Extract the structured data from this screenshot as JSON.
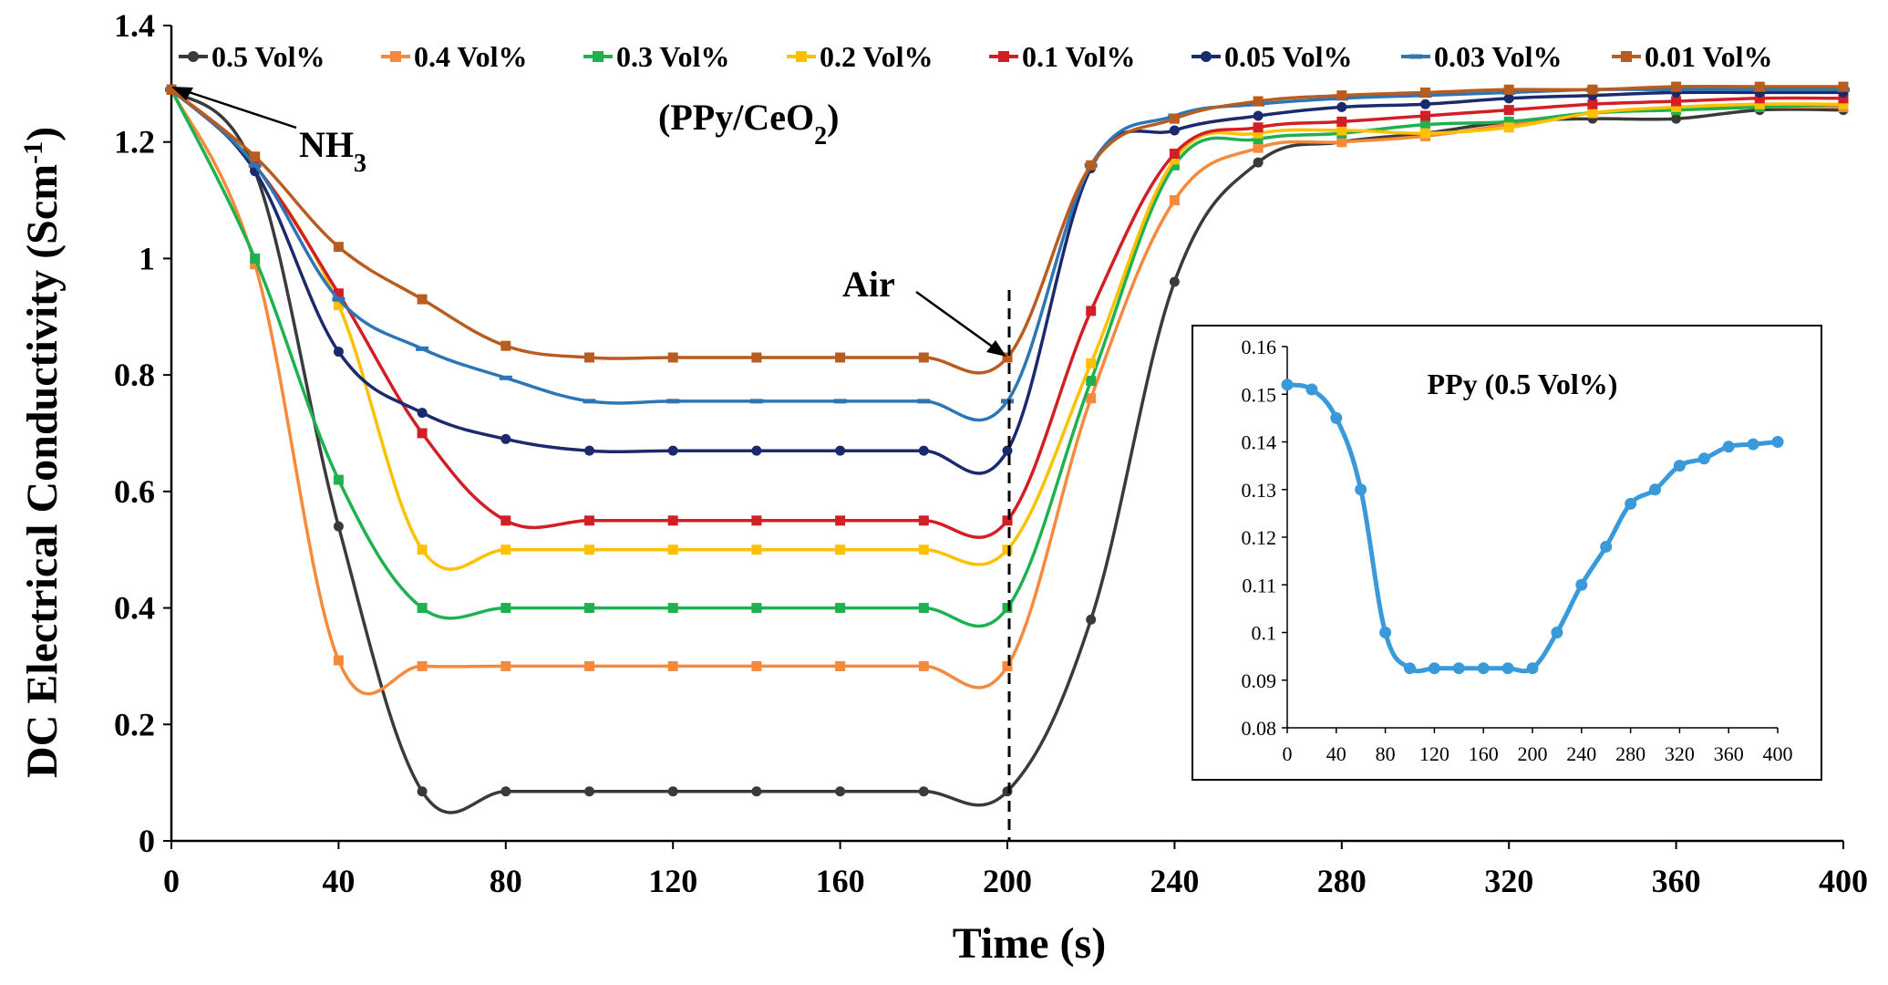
{
  "chart_data": {
    "type": "line",
    "title": "",
    "xlabel": "Time (s)",
    "ylabel": "DC Electrical Conductivity (Scm",
    "ylabel_sup": "-1",
    "ylabel_end": ")",
    "xlim": [
      0,
      400
    ],
    "ylim": [
      0,
      1.4
    ],
    "xticks": [
      0,
      40,
      80,
      120,
      160,
      200,
      240,
      280,
      320,
      360,
      400
    ],
    "yticks": [
      0,
      0.2,
      0.4,
      0.6,
      0.8,
      1,
      1.2,
      1.4
    ],
    "ytick_labels": [
      "0",
      "0.2",
      "0.4",
      "0.6",
      "0.8",
      "1",
      "1.2",
      "1.4"
    ],
    "x": [
      0,
      20,
      40,
      60,
      80,
      100,
      120,
      140,
      160,
      180,
      200,
      220,
      240,
      260,
      280,
      300,
      320,
      340,
      360,
      380,
      400
    ],
    "series": [
      {
        "name": "0.5 Vol%",
        "color": "#3a3a3a",
        "values": [
          1.29,
          1.15,
          0.54,
          0.085,
          0.085,
          0.085,
          0.085,
          0.085,
          0.085,
          0.085,
          0.085,
          0.38,
          0.96,
          1.165,
          1.2,
          1.215,
          1.235,
          1.24,
          1.24,
          1.255,
          1.255
        ]
      },
      {
        "name": "0.4 Vol%",
        "color": "#f58a3d",
        "values": [
          1.29,
          0.99,
          0.31,
          0.3,
          0.3,
          0.3,
          0.3,
          0.3,
          0.3,
          0.3,
          0.3,
          0.76,
          1.1,
          1.19,
          1.2,
          1.21,
          1.23,
          1.25,
          1.255,
          1.26,
          1.26
        ]
      },
      {
        "name": "0.3 Vol%",
        "color": "#1fb14f",
        "values": [
          1.29,
          1.0,
          0.62,
          0.4,
          0.4,
          0.4,
          0.4,
          0.4,
          0.4,
          0.4,
          0.4,
          0.79,
          1.16,
          1.205,
          1.215,
          1.23,
          1.235,
          1.25,
          1.255,
          1.26,
          1.265
        ]
      },
      {
        "name": "0.2 Vol%",
        "color": "#ffc000",
        "values": [
          1.29,
          1.16,
          0.92,
          0.5,
          0.5,
          0.5,
          0.5,
          0.5,
          0.5,
          0.5,
          0.5,
          0.82,
          1.17,
          1.215,
          1.22,
          1.215,
          1.225,
          1.25,
          1.26,
          1.265,
          1.265
        ]
      },
      {
        "name": "0.1 Vol%",
        "color": "#d21f26",
        "values": [
          1.29,
          1.16,
          0.94,
          0.7,
          0.55,
          0.55,
          0.55,
          0.55,
          0.55,
          0.55,
          0.55,
          0.91,
          1.18,
          1.225,
          1.235,
          1.245,
          1.255,
          1.265,
          1.27,
          1.275,
          1.275
        ]
      },
      {
        "name": "0.05 Vol%",
        "color": "#1a2a6c",
        "values": [
          1.29,
          1.15,
          0.84,
          0.735,
          0.69,
          0.67,
          0.67,
          0.67,
          0.67,
          0.67,
          0.67,
          1.155,
          1.22,
          1.245,
          1.26,
          1.265,
          1.275,
          1.28,
          1.285,
          1.285,
          1.285
        ]
      },
      {
        "name": "0.03 Vol%",
        "color": "#2e75b6",
        "values": [
          1.29,
          1.16,
          0.93,
          0.845,
          0.795,
          0.755,
          0.755,
          0.755,
          0.755,
          0.755,
          0.755,
          1.16,
          1.245,
          1.265,
          1.275,
          1.28,
          1.285,
          1.29,
          1.29,
          1.29,
          1.29
        ]
      },
      {
        "name": "0.01 Vol%",
        "color": "#b85c1f",
        "values": [
          1.29,
          1.175,
          1.02,
          0.93,
          0.85,
          0.83,
          0.83,
          0.83,
          0.83,
          0.83,
          0.83,
          1.16,
          1.24,
          1.27,
          1.28,
          1.285,
          1.29,
          1.29,
          1.295,
          1.295,
          1.295
        ]
      }
    ],
    "annotations": {
      "nh3": "NH",
      "nh3_sub": "3",
      "air": "Air",
      "sample_pre": "(PPy/CeO",
      "sample_sub": "2",
      "sample_post": ")"
    },
    "inset": {
      "type": "line",
      "title": "PPy (0.5 Vol%)",
      "color": "#3a9ad9",
      "xlim": [
        0,
        400
      ],
      "ylim": [
        0.08,
        0.16
      ],
      "xticks": [
        0,
        40,
        80,
        120,
        160,
        200,
        240,
        280,
        320,
        360,
        400
      ],
      "yticks": [
        0.08,
        0.09,
        0.1,
        0.11,
        0.12,
        0.13,
        0.14,
        0.15,
        0.16
      ],
      "ytick_labels": [
        "0.08",
        "0.09",
        "0.1",
        "0.11",
        "0.12",
        "0.13",
        "0.14",
        "0.15",
        "0.16"
      ],
      "x": [
        0,
        20,
        40,
        60,
        80,
        100,
        120,
        140,
        160,
        180,
        200,
        220,
        240,
        260,
        280,
        300,
        320,
        340,
        360,
        380,
        400
      ],
      "values": [
        0.152,
        0.151,
        0.145,
        0.13,
        0.1,
        0.0925,
        0.0925,
        0.0925,
        0.0925,
        0.0925,
        0.0925,
        0.1,
        0.11,
        0.118,
        0.127,
        0.13,
        0.135,
        0.1365,
        0.139,
        0.1395,
        0.14
      ]
    }
  }
}
